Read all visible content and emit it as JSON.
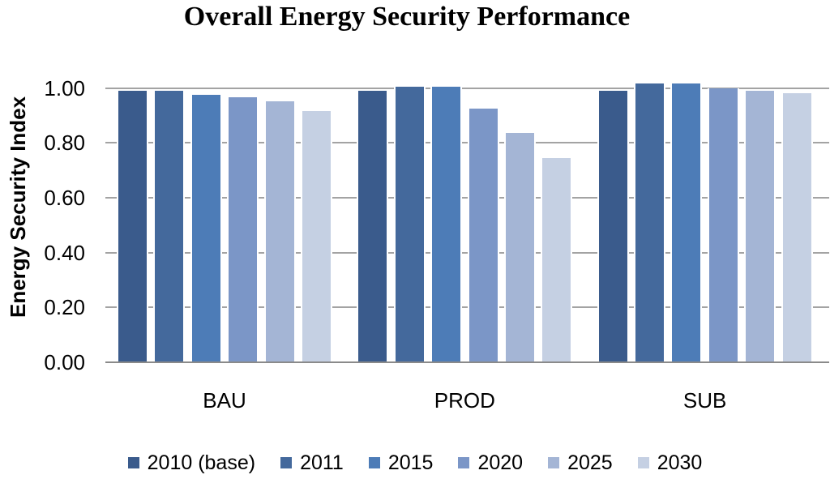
{
  "chart_data": {
    "type": "bar",
    "title": "Overall Energy Security Performance",
    "ylabel": "Energy Security Index",
    "xlabel": "",
    "categories": [
      "BAU",
      "PROD",
      "SUB"
    ],
    "series": [
      {
        "name": "2010 (base)",
        "color": "#3A5B8C",
        "values": [
          0.99,
          0.99,
          0.99
        ]
      },
      {
        "name": "2011",
        "color": "#44699C",
        "values": [
          0.99,
          1.005,
          1.015
        ]
      },
      {
        "name": "2015",
        "color": "#4D7CB7",
        "values": [
          0.975,
          1.005,
          1.015
        ]
      },
      {
        "name": "2020",
        "color": "#7B96C7",
        "values": [
          0.965,
          0.925,
          1.0
        ]
      },
      {
        "name": "2025",
        "color": "#A4B5D5",
        "values": [
          0.95,
          0.835,
          0.99
        ]
      },
      {
        "name": "2030",
        "color": "#C5D0E3",
        "values": [
          0.915,
          0.745,
          0.98
        ]
      }
    ],
    "yticks": [
      0.0,
      0.2,
      0.4,
      0.6,
      0.8,
      1.0
    ],
    "ytick_labels": [
      "0.00",
      "0.20",
      "0.40",
      "0.60",
      "0.80",
      "1.00"
    ],
    "ylim": [
      0,
      1.04
    ],
    "grid": true,
    "legend_position": "bottom"
  },
  "colors": {
    "gridline": "#A3A3A3",
    "axis_line": "#8A8A8A",
    "text": "#000000",
    "background": "#FFFFFF"
  }
}
